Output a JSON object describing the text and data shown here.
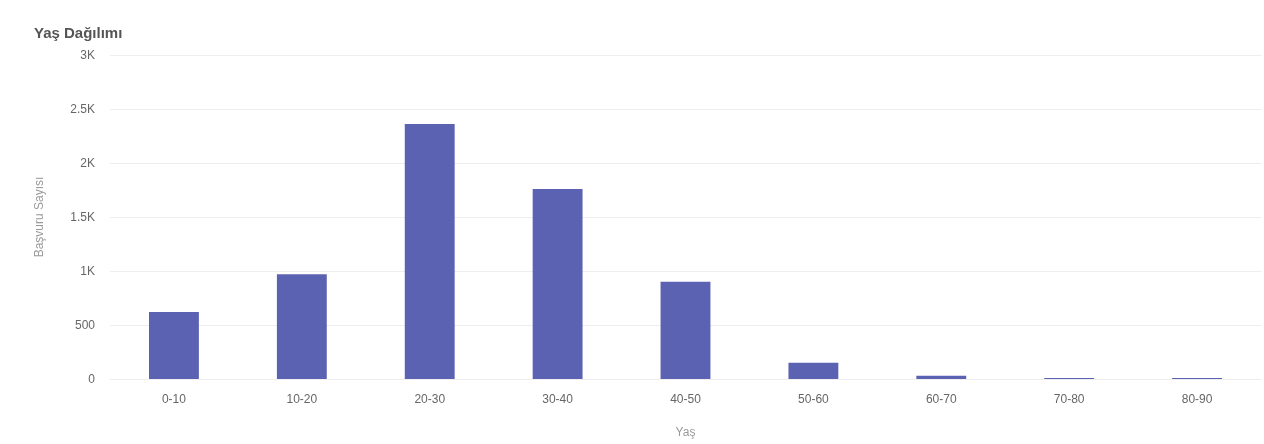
{
  "chart_data": {
    "type": "bar",
    "title": "Yaş Dağılımı",
    "xlabel": "Yaş",
    "ylabel": "Başvuru Sayısı",
    "categories": [
      "0-10",
      "10-20",
      "20-30",
      "30-40",
      "40-50",
      "50-60",
      "60-70",
      "70-80",
      "80-90"
    ],
    "values": [
      620,
      970,
      2360,
      1760,
      900,
      150,
      30,
      10,
      10
    ],
    "color": "#5c62b2",
    "ylim": [
      0,
      3000
    ],
    "yticks": [
      0,
      500,
      {
        "value": 1000,
        "label": "1K"
      },
      {
        "value": 1500,
        "label": "1.5K"
      },
      {
        "value": 2000,
        "label": "2K"
      },
      {
        "value": 2500,
        "label": "2.5K"
      },
      {
        "value": 3000,
        "label": "3K"
      }
    ],
    "grid": "y"
  }
}
